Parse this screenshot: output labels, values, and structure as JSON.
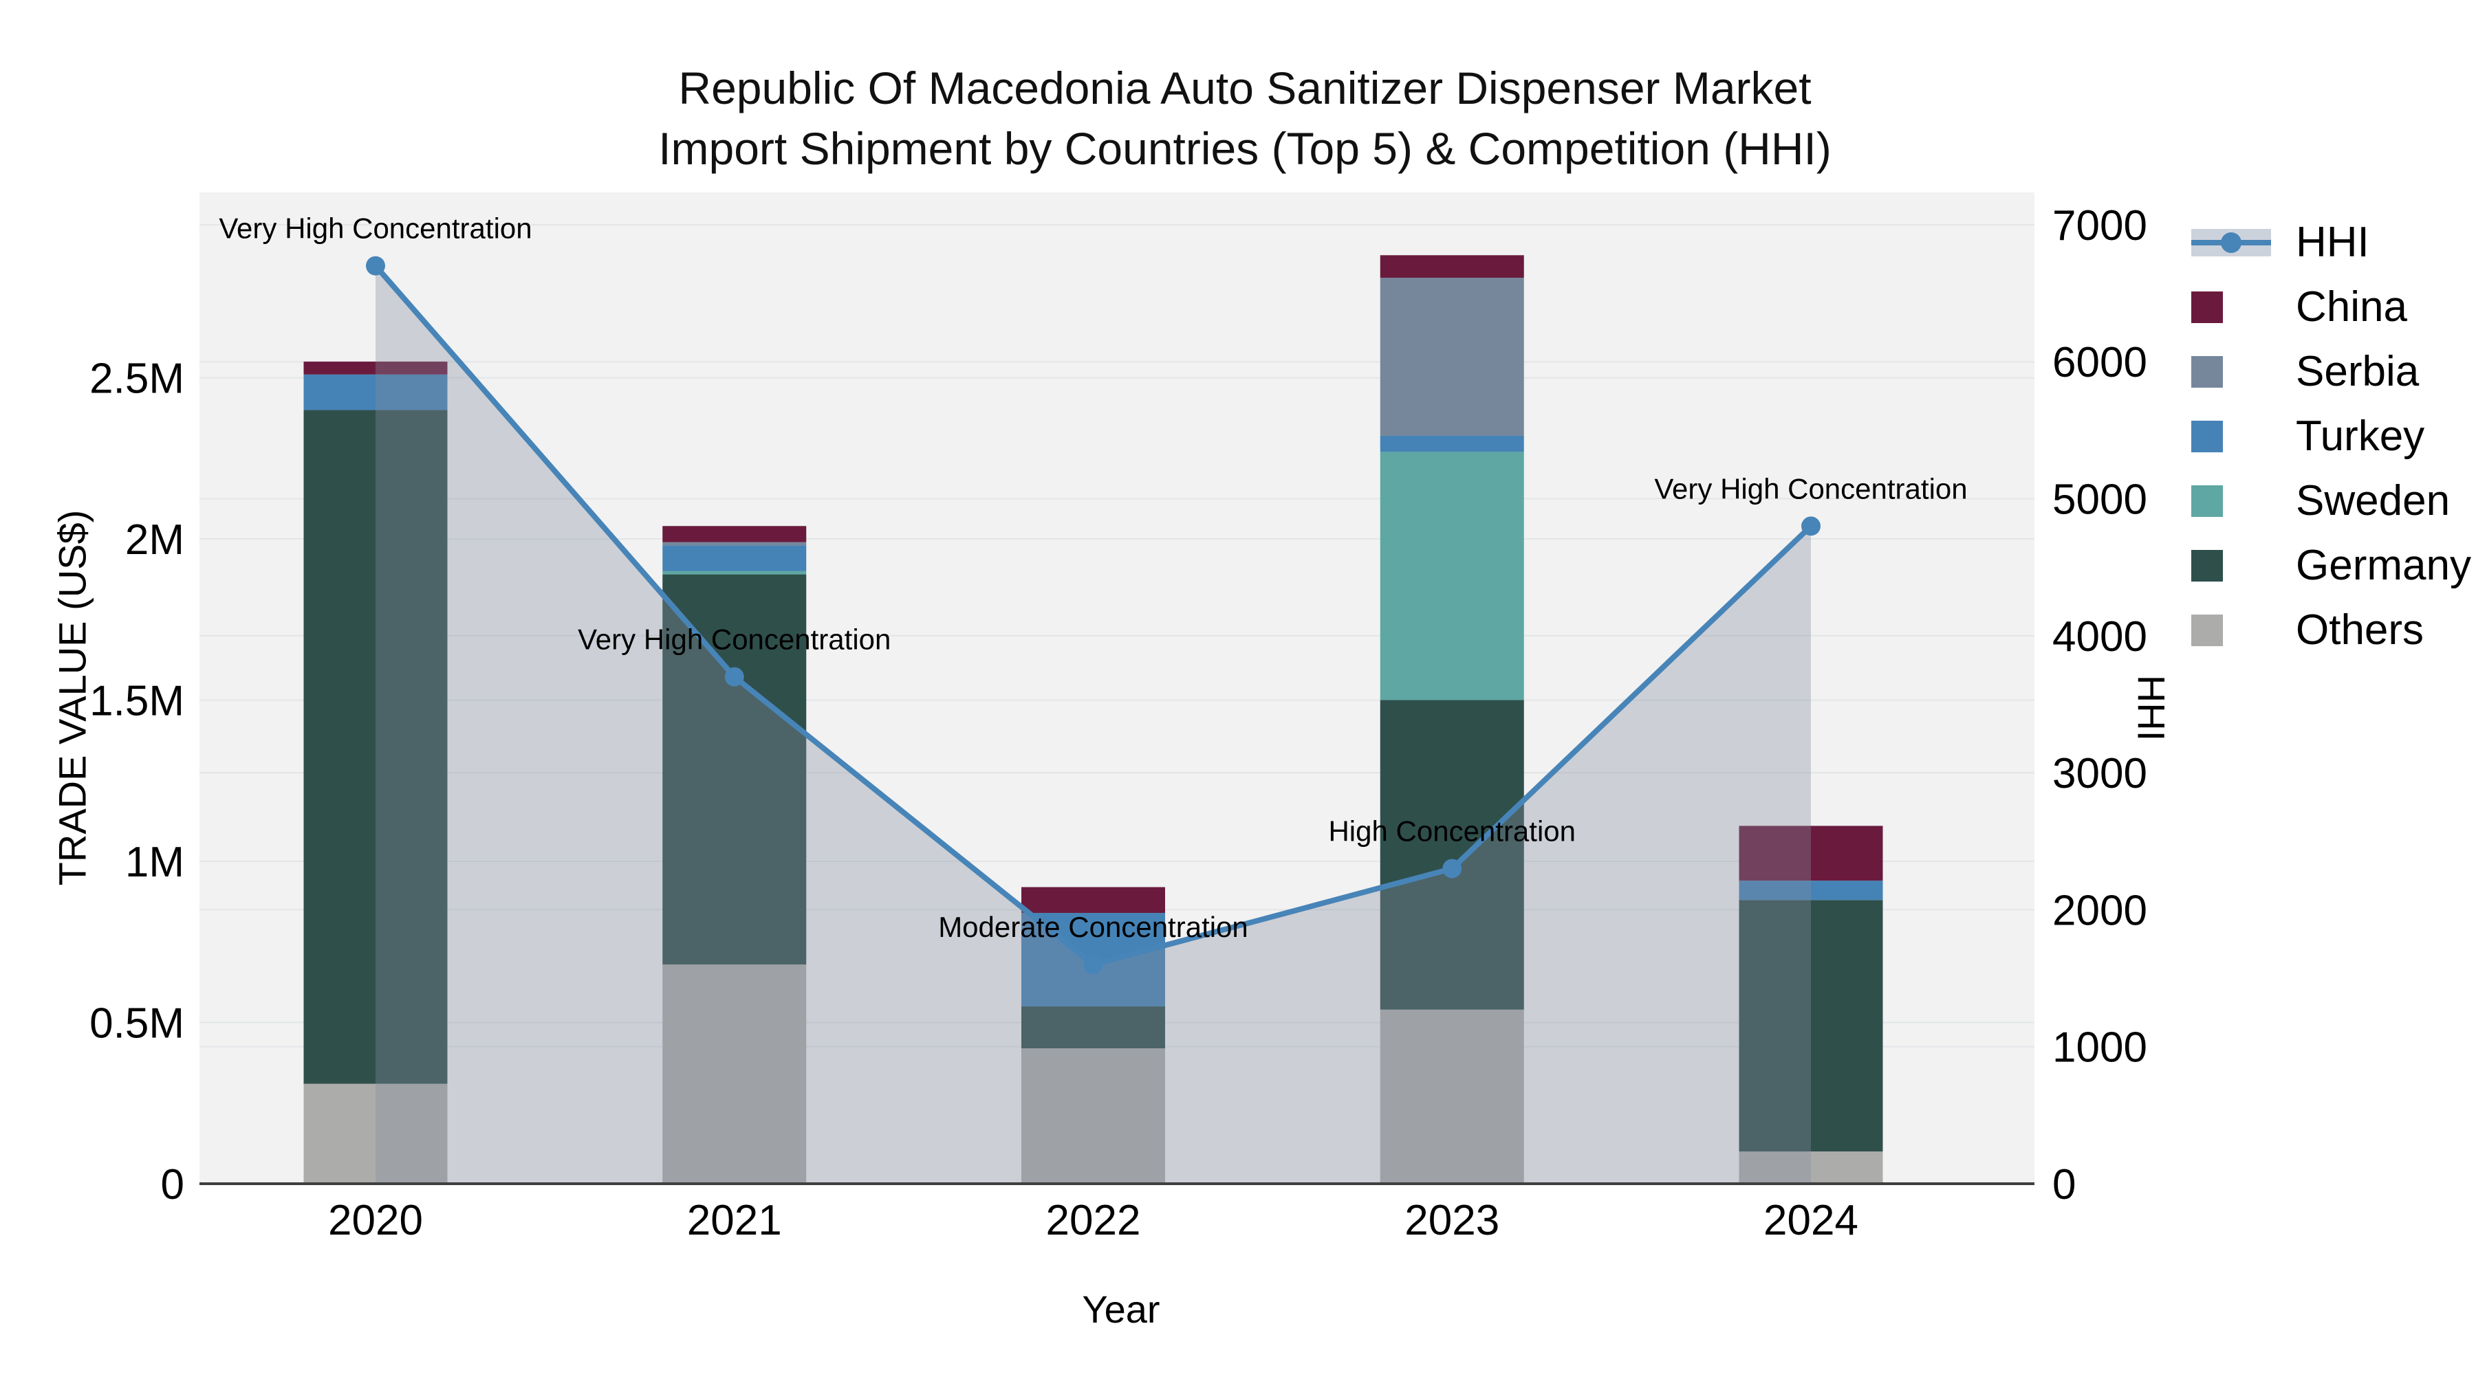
{
  "title": {
    "line1": "Republic Of Macedonia Auto Sanitizer Dispenser Market",
    "line2": "Import Shipment by Countries (Top 5) & Competition (HHI)"
  },
  "axes": {
    "x": {
      "title": "Year",
      "categories": [
        "2020",
        "2021",
        "2022",
        "2023",
        "2024"
      ]
    },
    "left": {
      "title": "TRADE VALUE (US$)",
      "tick_labels": [
        "0",
        "0.5M",
        "1M",
        "1.5M",
        "2M",
        "2.5M"
      ],
      "tick_values_musd": [
        0,
        0.5,
        1,
        1.5,
        2,
        2.5
      ]
    },
    "right": {
      "title": "HHI",
      "tick_labels": [
        "0",
        "1000",
        "2000",
        "3000",
        "4000",
        "5000",
        "6000",
        "7000"
      ],
      "tick_values": [
        0,
        1000,
        2000,
        3000,
        4000,
        5000,
        6000,
        7000
      ]
    }
  },
  "chart_data": {
    "type": "bar",
    "subtype": "stacked-bars-with-line",
    "categories": [
      "2020",
      "2021",
      "2022",
      "2023",
      "2024"
    ],
    "bar_units": "Trade value, millions US$",
    "series": [
      {
        "name": "Others",
        "color": "#ACACAA",
        "values": [
          0.31,
          0.68,
          0.42,
          0.54,
          0.1
        ]
      },
      {
        "name": "Germany",
        "color": "#2F4F4B",
        "values": [
          2.09,
          1.21,
          0.13,
          0.96,
          0.78
        ]
      },
      {
        "name": "Sweden",
        "color": "#5FA7A3",
        "values": [
          0,
          0.01,
          0,
          0.77,
          0
        ]
      },
      {
        "name": "Turkey",
        "color": "#4583B6",
        "values": [
          0.11,
          0.08,
          0.29,
          0.05,
          0.06
        ]
      },
      {
        "name": "Serbia",
        "color": "#76879B",
        "values": [
          0,
          0.01,
          0,
          0.49,
          0
        ]
      },
      {
        "name": "China",
        "color": "#6A1B3D",
        "values": [
          0.04,
          0.05,
          0.08,
          0.07,
          0.17
        ]
      }
    ],
    "line_series": {
      "name": "HHI",
      "axis": "right",
      "color": "#4784B8",
      "area_fill_color": "rgba(132,140,158,0.34)",
      "values": [
        6700,
        3700,
        1600,
        2300,
        4800
      ]
    },
    "annotations": [
      {
        "x": "2020",
        "text": "Very High Concentration"
      },
      {
        "x": "2021",
        "text": "Very High Concentration"
      },
      {
        "x": "2022",
        "text": "Moderate Concentration"
      },
      {
        "x": "2023",
        "text": "High Concentration"
      },
      {
        "x": "2024",
        "text": "Very High Concentration"
      }
    ],
    "ylim_left_musd": [
      0,
      3.07
    ],
    "ylim_right": [
      0,
      7230
    ],
    "grid": true,
    "legend_position": "right",
    "plot_bg": "#f2f2f2",
    "grid_color": "#e3e5e8",
    "axisline_color": "#3f3f3f"
  },
  "legend": {
    "items": [
      {
        "label": "HHI",
        "type": "line",
        "color": "#4784B8"
      },
      {
        "label": "China",
        "type": "square",
        "color": "#6A1B3D"
      },
      {
        "label": "Serbia",
        "type": "square",
        "color": "#76879B"
      },
      {
        "label": "Turkey",
        "type": "square",
        "color": "#4583B6"
      },
      {
        "label": "Sweden",
        "type": "square",
        "color": "#5FA7A3"
      },
      {
        "label": "Germany",
        "type": "square",
        "color": "#2F4F4B"
      },
      {
        "label": "Others",
        "type": "square",
        "color": "#ACACAA"
      }
    ]
  }
}
